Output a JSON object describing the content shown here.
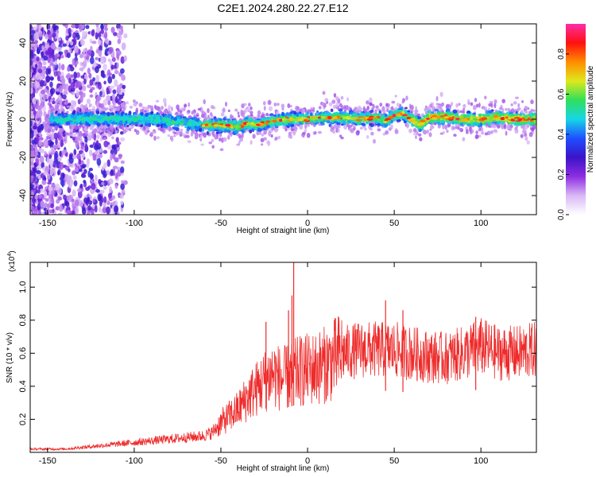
{
  "title": "C2E1.2024.280.22.27.E12",
  "chart_data": [
    {
      "type": "heatmap",
      "xlabel": "Height of straight line (km)",
      "ylabel": "Frequency (Hz)",
      "xlim": [
        -160,
        132
      ],
      "ylim": [
        -50,
        50
      ],
      "xticks": [
        -150,
        -100,
        -50,
        0,
        50,
        100
      ],
      "yticks": [
        -40,
        -20,
        0,
        20,
        40
      ],
      "colorbar": {
        "label": "Normalized spectral amplitude",
        "range": [
          0,
          0.95
        ],
        "ticks": [
          0.0,
          0.2,
          0.4,
          0.6,
          0.8
        ],
        "colors": [
          "#ffffff",
          "#d9b8f5",
          "#8e2de2",
          "#3b14c8",
          "#1e4fff",
          "#16d6e8",
          "#2fe05a",
          "#dfe81c",
          "#ff8c00",
          "#ff1010",
          "#ff2da8"
        ]
      },
      "ridge": {
        "x": [
          -145,
          -130,
          -110,
          -100,
          -90,
          -80,
          -70,
          -60,
          -50,
          -40,
          -35,
          -30,
          -20,
          -10,
          0,
          10,
          20,
          30,
          40,
          45,
          50,
          55,
          60,
          65,
          70,
          80,
          90,
          100,
          110,
          120,
          130
        ],
        "y": [
          0,
          0,
          0,
          0,
          0,
          -1,
          -2,
          -3,
          -3,
          -4,
          -2,
          -3,
          -1,
          0,
          0,
          1,
          1,
          0,
          1,
          -1,
          2,
          3,
          0,
          -3,
          1,
          1,
          0,
          0,
          1,
          0,
          0
        ]
      },
      "grid": false
    },
    {
      "type": "line",
      "xlabel": "Height of straight line (km)",
      "ylabel": "SNR (10 * v/v)",
      "scale_label": "(x10",
      "scale_exp": "4",
      "scale_close": ")",
      "xlim": [
        -160,
        132
      ],
      "ylim": [
        0,
        1.15
      ],
      "xticks": [
        -150,
        -100,
        -50,
        0,
        50,
        100
      ],
      "yticks": [
        0.2,
        0.4,
        0.6,
        0.8,
        1.0
      ],
      "color": "#ee2b2b",
      "trend": {
        "x": [
          -160,
          -140,
          -120,
          -100,
          -90,
          -80,
          -70,
          -60,
          -55,
          -50,
          -45,
          -40,
          -35,
          -30,
          -25,
          -20,
          -15,
          -10,
          -5,
          0,
          5,
          10,
          15,
          20,
          30,
          40,
          50,
          60,
          70,
          80,
          90,
          100,
          110,
          120,
          132
        ],
        "y": [
          0.02,
          0.02,
          0.04,
          0.06,
          0.07,
          0.08,
          0.09,
          0.1,
          0.12,
          0.18,
          0.22,
          0.26,
          0.33,
          0.38,
          0.43,
          0.48,
          0.44,
          0.46,
          0.49,
          0.5,
          0.51,
          0.53,
          0.56,
          0.6,
          0.62,
          0.62,
          0.62,
          0.6,
          0.58,
          0.57,
          0.6,
          0.64,
          0.6,
          0.6,
          0.62
        ]
      },
      "spikes": [
        {
          "x": -8,
          "y": 1.15
        },
        {
          "x": -9,
          "y": 0.95
        },
        {
          "x": -11,
          "y": 0.86
        },
        {
          "x": -24,
          "y": 0.79
        },
        {
          "x": 45,
          "y": 0.92
        },
        {
          "x": 55,
          "y": 0.86
        },
        {
          "x": 97,
          "y": 0.82
        }
      ],
      "grid": false
    }
  ]
}
